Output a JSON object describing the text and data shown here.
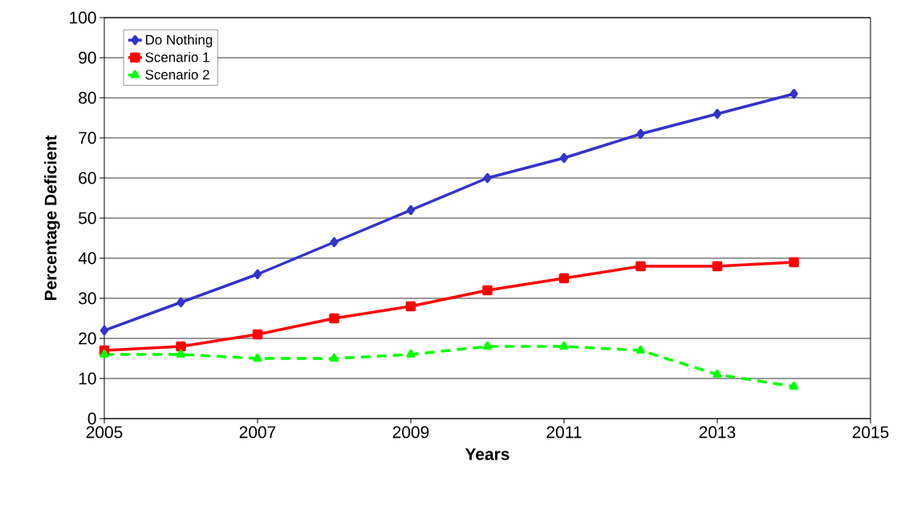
{
  "chart_data": {
    "type": "line",
    "xlabel": "Years",
    "ylabel": "Percentage Deficient",
    "x": [
      2005,
      2006,
      2007,
      2008,
      2009,
      2010,
      2011,
      2012,
      2013,
      2014
    ],
    "series": [
      {
        "name": "Do Nothing",
        "color": "#3333cc",
        "marker": "diamond",
        "line_style": "solid",
        "values": [
          22,
          29,
          36,
          44,
          52,
          60,
          65,
          71,
          76,
          81
        ]
      },
      {
        "name": "Scenario 1",
        "color": "#ff0000",
        "marker": "square",
        "line_style": "solid",
        "values": [
          17,
          18,
          21,
          25,
          28,
          32,
          35,
          38,
          38,
          39
        ]
      },
      {
        "name": "Scenario 2",
        "color": "#00ff00",
        "marker": "triangle",
        "line_style": "dashed",
        "values": [
          16,
          16,
          15,
          15,
          16,
          18,
          18,
          17,
          11,
          8
        ]
      }
    ],
    "xlim": [
      2005,
      2015
    ],
    "xticks": [
      2005,
      2007,
      2009,
      2011,
      2013,
      2015
    ],
    "ylim": [
      0,
      100
    ],
    "yticks": [
      0,
      10,
      20,
      30,
      40,
      50,
      60,
      70,
      80,
      90,
      100
    ],
    "grid": "y",
    "legend": "top left"
  }
}
